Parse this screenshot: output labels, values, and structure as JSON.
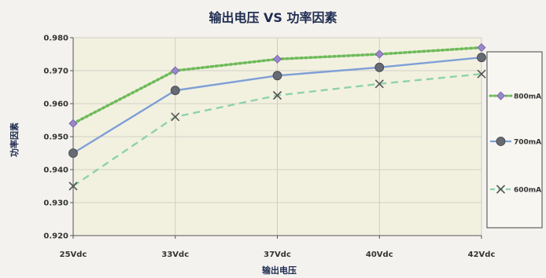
{
  "chart_data": {
    "type": "line",
    "title": "输出电压 VS 功率因素",
    "xlabel": "输出电压",
    "ylabel": "功率因素",
    "categories": [
      "25Vdc",
      "33Vdc",
      "37Vdc",
      "40Vdc",
      "42Vdc"
    ],
    "ylim": [
      0.92,
      0.98
    ],
    "yticks": [
      "0.920",
      "0.930",
      "0.940",
      "0.950",
      "0.960",
      "0.970",
      "0.980"
    ],
    "grid": "horizontal",
    "legend_position": "right",
    "series": [
      {
        "name": "800mA",
        "values": [
          0.954,
          0.97,
          0.9735,
          0.975,
          0.977
        ],
        "color": "#6fba5a",
        "marker_color": "#9a86c8",
        "marker": "diamond",
        "dash": "dotted"
      },
      {
        "name": "700mA",
        "values": [
          0.945,
          0.964,
          0.9685,
          0.971,
          0.974
        ],
        "color": "#7f9fd6",
        "marker_color": "#666a73",
        "marker": "circle",
        "dash": "solid"
      },
      {
        "name": "600mA",
        "values": [
          0.935,
          0.956,
          0.9625,
          0.966,
          0.969
        ],
        "color": "#8fd1ad",
        "marker_color": "#555555",
        "marker": "x",
        "dash": "dashed"
      }
    ]
  }
}
